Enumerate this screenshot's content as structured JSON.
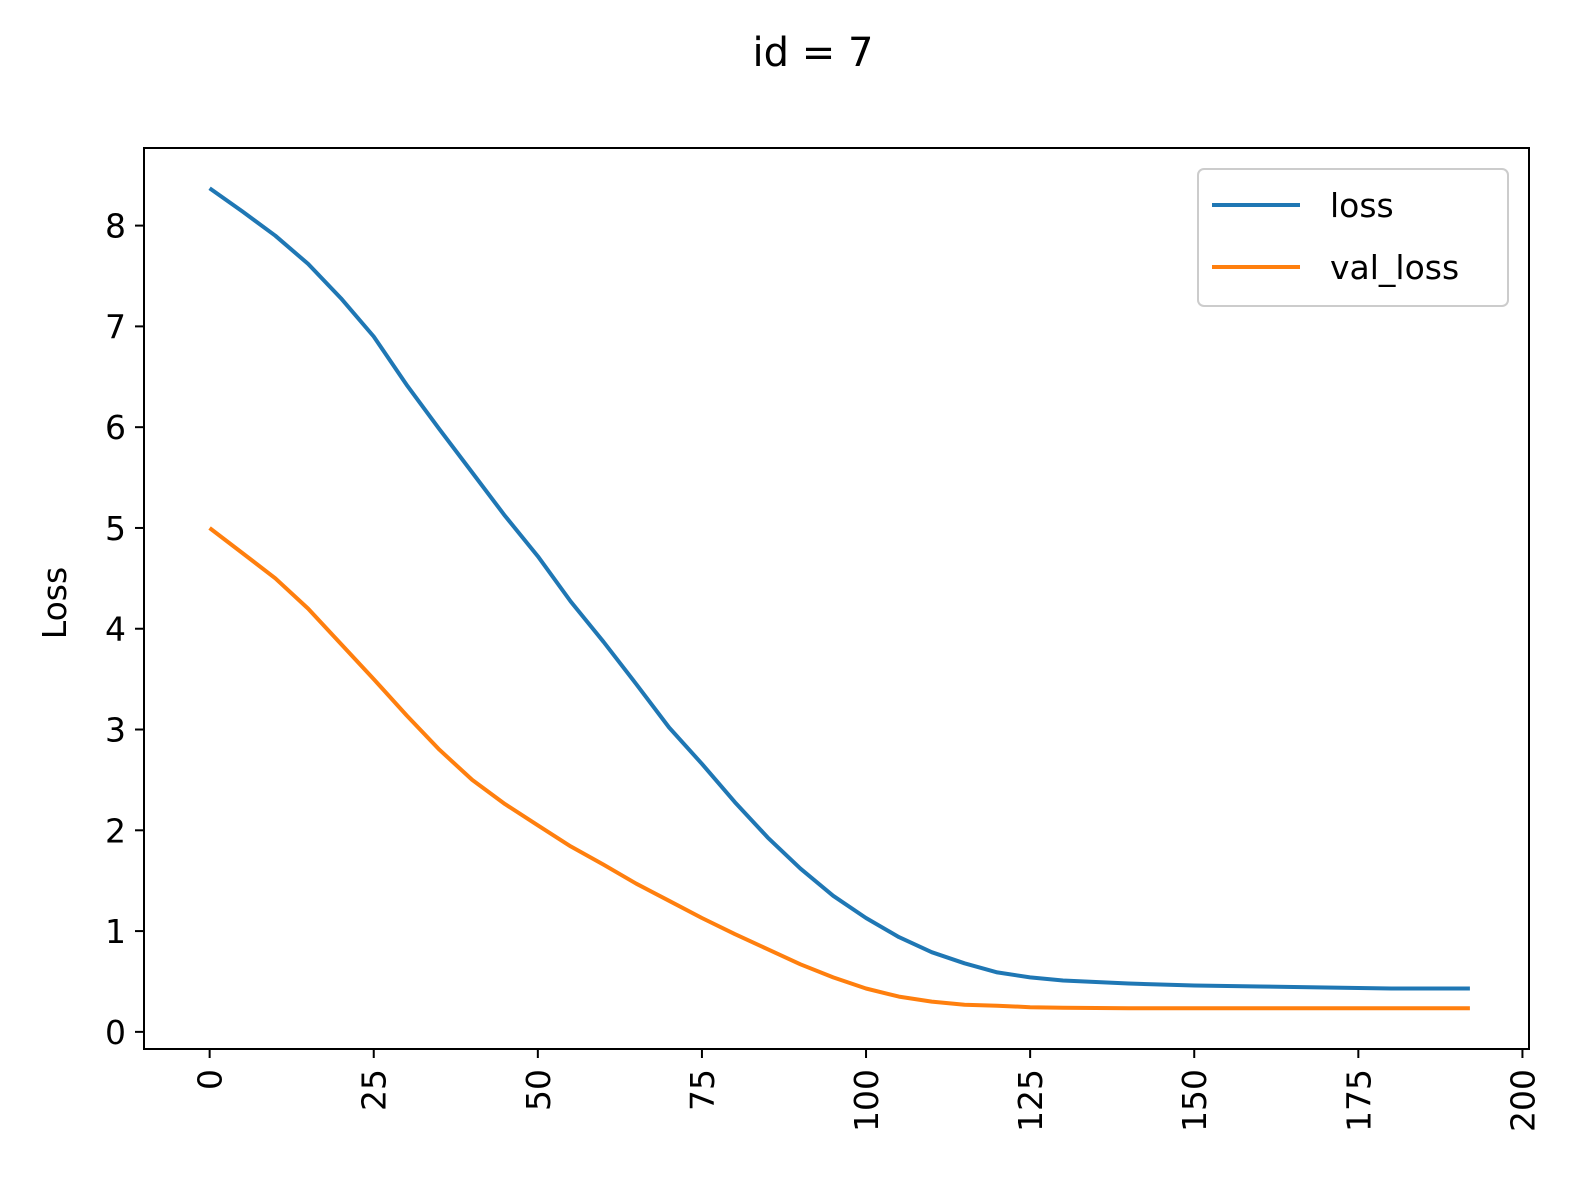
{
  "chart_data": {
    "type": "line",
    "title": "id = 7",
    "xlabel": "",
    "ylabel": "Loss",
    "xlim": [
      -10,
      201
    ],
    "ylim": [
      -0.17,
      8.77
    ],
    "xticks": [
      0,
      25,
      50,
      75,
      100,
      125,
      150,
      175,
      200
    ],
    "yticks": [
      0,
      1,
      2,
      3,
      4,
      5,
      6,
      7,
      8
    ],
    "grid": false,
    "legend": {
      "placement": "top-right"
    },
    "series": [
      {
        "name": "loss",
        "color": "#1f77b4",
        "points": [
          [
            0,
            8.37
          ],
          [
            5,
            8.14
          ],
          [
            10,
            7.9
          ],
          [
            15,
            7.62
          ],
          [
            20,
            7.28
          ],
          [
            25,
            6.9
          ],
          [
            30,
            6.42
          ],
          [
            35,
            5.98
          ],
          [
            40,
            5.55
          ],
          [
            45,
            5.12
          ],
          [
            50,
            4.72
          ],
          [
            55,
            4.27
          ],
          [
            60,
            3.87
          ],
          [
            65,
            3.45
          ],
          [
            70,
            3.02
          ],
          [
            75,
            2.66
          ],
          [
            80,
            2.28
          ],
          [
            85,
            1.93
          ],
          [
            90,
            1.62
          ],
          [
            95,
            1.35
          ],
          [
            100,
            1.13
          ],
          [
            105,
            0.94
          ],
          [
            110,
            0.79
          ],
          [
            115,
            0.68
          ],
          [
            120,
            0.59
          ],
          [
            125,
            0.54
          ],
          [
            130,
            0.51
          ],
          [
            140,
            0.48
          ],
          [
            150,
            0.46
          ],
          [
            160,
            0.45
          ],
          [
            170,
            0.44
          ],
          [
            180,
            0.43
          ],
          [
            192,
            0.43
          ]
        ]
      },
      {
        "name": "val_loss",
        "color": "#ff7f0e",
        "points": [
          [
            0,
            5.0
          ],
          [
            5,
            4.75
          ],
          [
            10,
            4.5
          ],
          [
            15,
            4.2
          ],
          [
            20,
            3.85
          ],
          [
            25,
            3.5
          ],
          [
            30,
            3.14
          ],
          [
            35,
            2.8
          ],
          [
            40,
            2.5
          ],
          [
            45,
            2.26
          ],
          [
            50,
            2.05
          ],
          [
            55,
            1.84
          ],
          [
            60,
            1.66
          ],
          [
            65,
            1.47
          ],
          [
            70,
            1.3
          ],
          [
            75,
            1.13
          ],
          [
            80,
            0.97
          ],
          [
            85,
            0.82
          ],
          [
            90,
            0.67
          ],
          [
            95,
            0.54
          ],
          [
            100,
            0.43
          ],
          [
            105,
            0.35
          ],
          [
            110,
            0.3
          ],
          [
            115,
            0.27
          ],
          [
            120,
            0.26
          ],
          [
            125,
            0.245
          ],
          [
            130,
            0.24
          ],
          [
            140,
            0.235
          ],
          [
            150,
            0.235
          ],
          [
            160,
            0.235
          ],
          [
            170,
            0.235
          ],
          [
            180,
            0.235
          ],
          [
            192,
            0.235
          ]
        ]
      }
    ]
  }
}
